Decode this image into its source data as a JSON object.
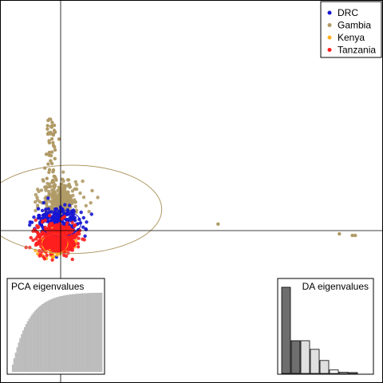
{
  "chart_data": [
    {
      "type": "scatter",
      "title": "",
      "xlabel": "",
      "ylabel": "",
      "grid": false,
      "axes_through_origin": true,
      "legend_position": "top-right",
      "colors": {
        "DRC": "#1515d4",
        "Gambia": "#b09a66",
        "Kenya": "#ffae1a",
        "Tanzania": "#ff1e1e"
      },
      "series": [
        {
          "name": "DRC",
          "color": "#1515d4",
          "center": [
            -0.1,
            0.5
          ],
          "spread": [
            1.5,
            0.95
          ],
          "count": 260,
          "ellipse": [
            0.0,
            0.45,
            1.4,
            0.8
          ]
        },
        {
          "name": "Gambia",
          "color": "#b09a66",
          "center": [
            0.0,
            1.8
          ],
          "spread": [
            1.2,
            1.05
          ],
          "count": 300,
          "ellipse": [
            0.8,
            1.3,
            6.2,
            2.7
          ],
          "outliers": [
            [
              -0.7,
              6.8
            ],
            [
              -0.6,
              6.4
            ],
            [
              -0.7,
              6.0
            ],
            [
              -0.6,
              5.6
            ],
            [
              -0.5,
              5.2
            ],
            [
              -0.6,
              4.8
            ],
            [
              -0.4,
              4.4
            ],
            [
              -0.6,
              4.1
            ],
            [
              -0.5,
              3.7
            ],
            [
              -0.4,
              3.3
            ],
            [
              10.9,
              0.4
            ],
            [
              19.3,
              -0.2
            ],
            [
              20.2,
              -0.3
            ],
            [
              20.4,
              -0.3
            ]
          ]
        },
        {
          "name": "Kenya",
          "color": "#ffae1a",
          "center": [
            -0.4,
            -0.8
          ],
          "spread": [
            1.0,
            0.7
          ],
          "count": 90,
          "ellipse": [
            -0.4,
            -0.8,
            0.9,
            0.6
          ]
        },
        {
          "name": "Tanzania",
          "color": "#ff1e1e",
          "center": [
            -0.3,
            -0.5
          ],
          "spread": [
            1.3,
            0.85
          ],
          "count": 420,
          "ellipse": [
            -0.3,
            -0.5,
            1.1,
            0.8
          ]
        }
      ],
      "xlim": [
        -4,
        22
      ],
      "ylim": [
        -4,
        15
      ]
    },
    {
      "type": "area",
      "title": "PCA eigenvalues",
      "n_bars": 60,
      "retained": 60,
      "fill_color": "#c0c0c0",
      "cumulative_fraction_shape": "saturating"
    },
    {
      "type": "bar",
      "title": "DA eigenvalues",
      "values": [
        1.0,
        0.38,
        0.38,
        0.28,
        0.15,
        0.04,
        0.015,
        0.01
      ],
      "colors": [
        "#6e6e6e",
        "#6e6e6e",
        "#e0e0e0",
        "#e0e0e0",
        "#e0e0e0",
        "#ffffff",
        "#ffffff",
        "#ffffff"
      ]
    }
  ],
  "legend": {
    "items": [
      {
        "label": "DRC",
        "color": "#1515d4"
      },
      {
        "label": "Gambia",
        "color": "#b09a66"
      },
      {
        "label": "Kenya",
        "color": "#ffae1a"
      },
      {
        "label": "Tanzania",
        "color": "#ff1e1e"
      }
    ]
  }
}
